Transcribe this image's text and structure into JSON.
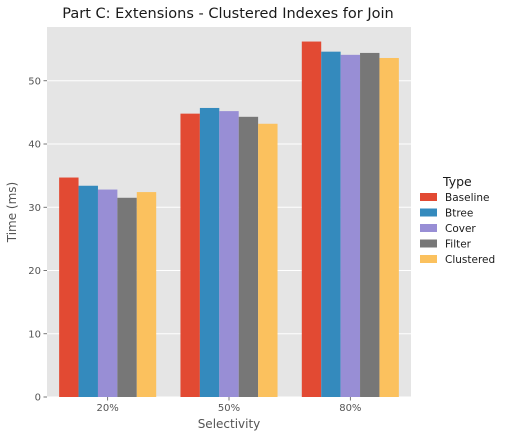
{
  "chart_data": {
    "type": "bar",
    "title": "Part C: Extensions - Clustered Indexes for Join",
    "xlabel": "Selectivity",
    "ylabel": "Time (ms)",
    "categories": [
      "20%",
      "50%",
      "80%"
    ],
    "ylim": [
      0,
      58.5
    ],
    "yticks": [
      0,
      10,
      20,
      30,
      40,
      50
    ],
    "grid": true,
    "legend_title": "Type",
    "legend_position": "right",
    "series": [
      {
        "name": "Baseline",
        "color": "#E24A33",
        "values": [
          34.7,
          44.8,
          56.2
        ]
      },
      {
        "name": "Btree",
        "color": "#348ABD",
        "values": [
          33.4,
          45.7,
          54.6
        ]
      },
      {
        "name": "Cover",
        "color": "#988ED5",
        "values": [
          32.8,
          45.2,
          54.1
        ]
      },
      {
        "name": "Filter",
        "color": "#777777",
        "values": [
          31.5,
          44.3,
          54.4
        ]
      },
      {
        "name": "Clustered",
        "color": "#FBC15E",
        "values": [
          32.4,
          43.2,
          53.6
        ]
      }
    ]
  }
}
